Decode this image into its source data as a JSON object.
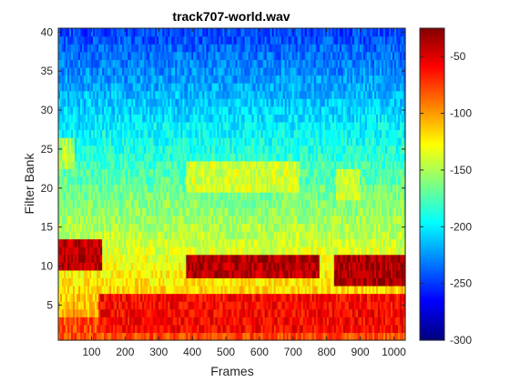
{
  "chart_data": {
    "type": "heatmap",
    "title": "track707-world.wav",
    "xlabel": "Frames",
    "ylabel": "Filter Bank",
    "xlim": [
      1,
      1034
    ],
    "ylim": [
      0.5,
      40.5
    ],
    "x_ticks": [
      100,
      200,
      300,
      400,
      500,
      600,
      700,
      800,
      900,
      1000
    ],
    "y_ticks": [
      5,
      10,
      15,
      20,
      25,
      30,
      35,
      40
    ],
    "colorbar": {
      "colormap": "jet",
      "range": [
        -300,
        -25
      ],
      "ticks": [
        -50,
        -100,
        -150,
        -200,
        -250,
        -300
      ]
    },
    "n_filters": 40,
    "grid": false
  }
}
